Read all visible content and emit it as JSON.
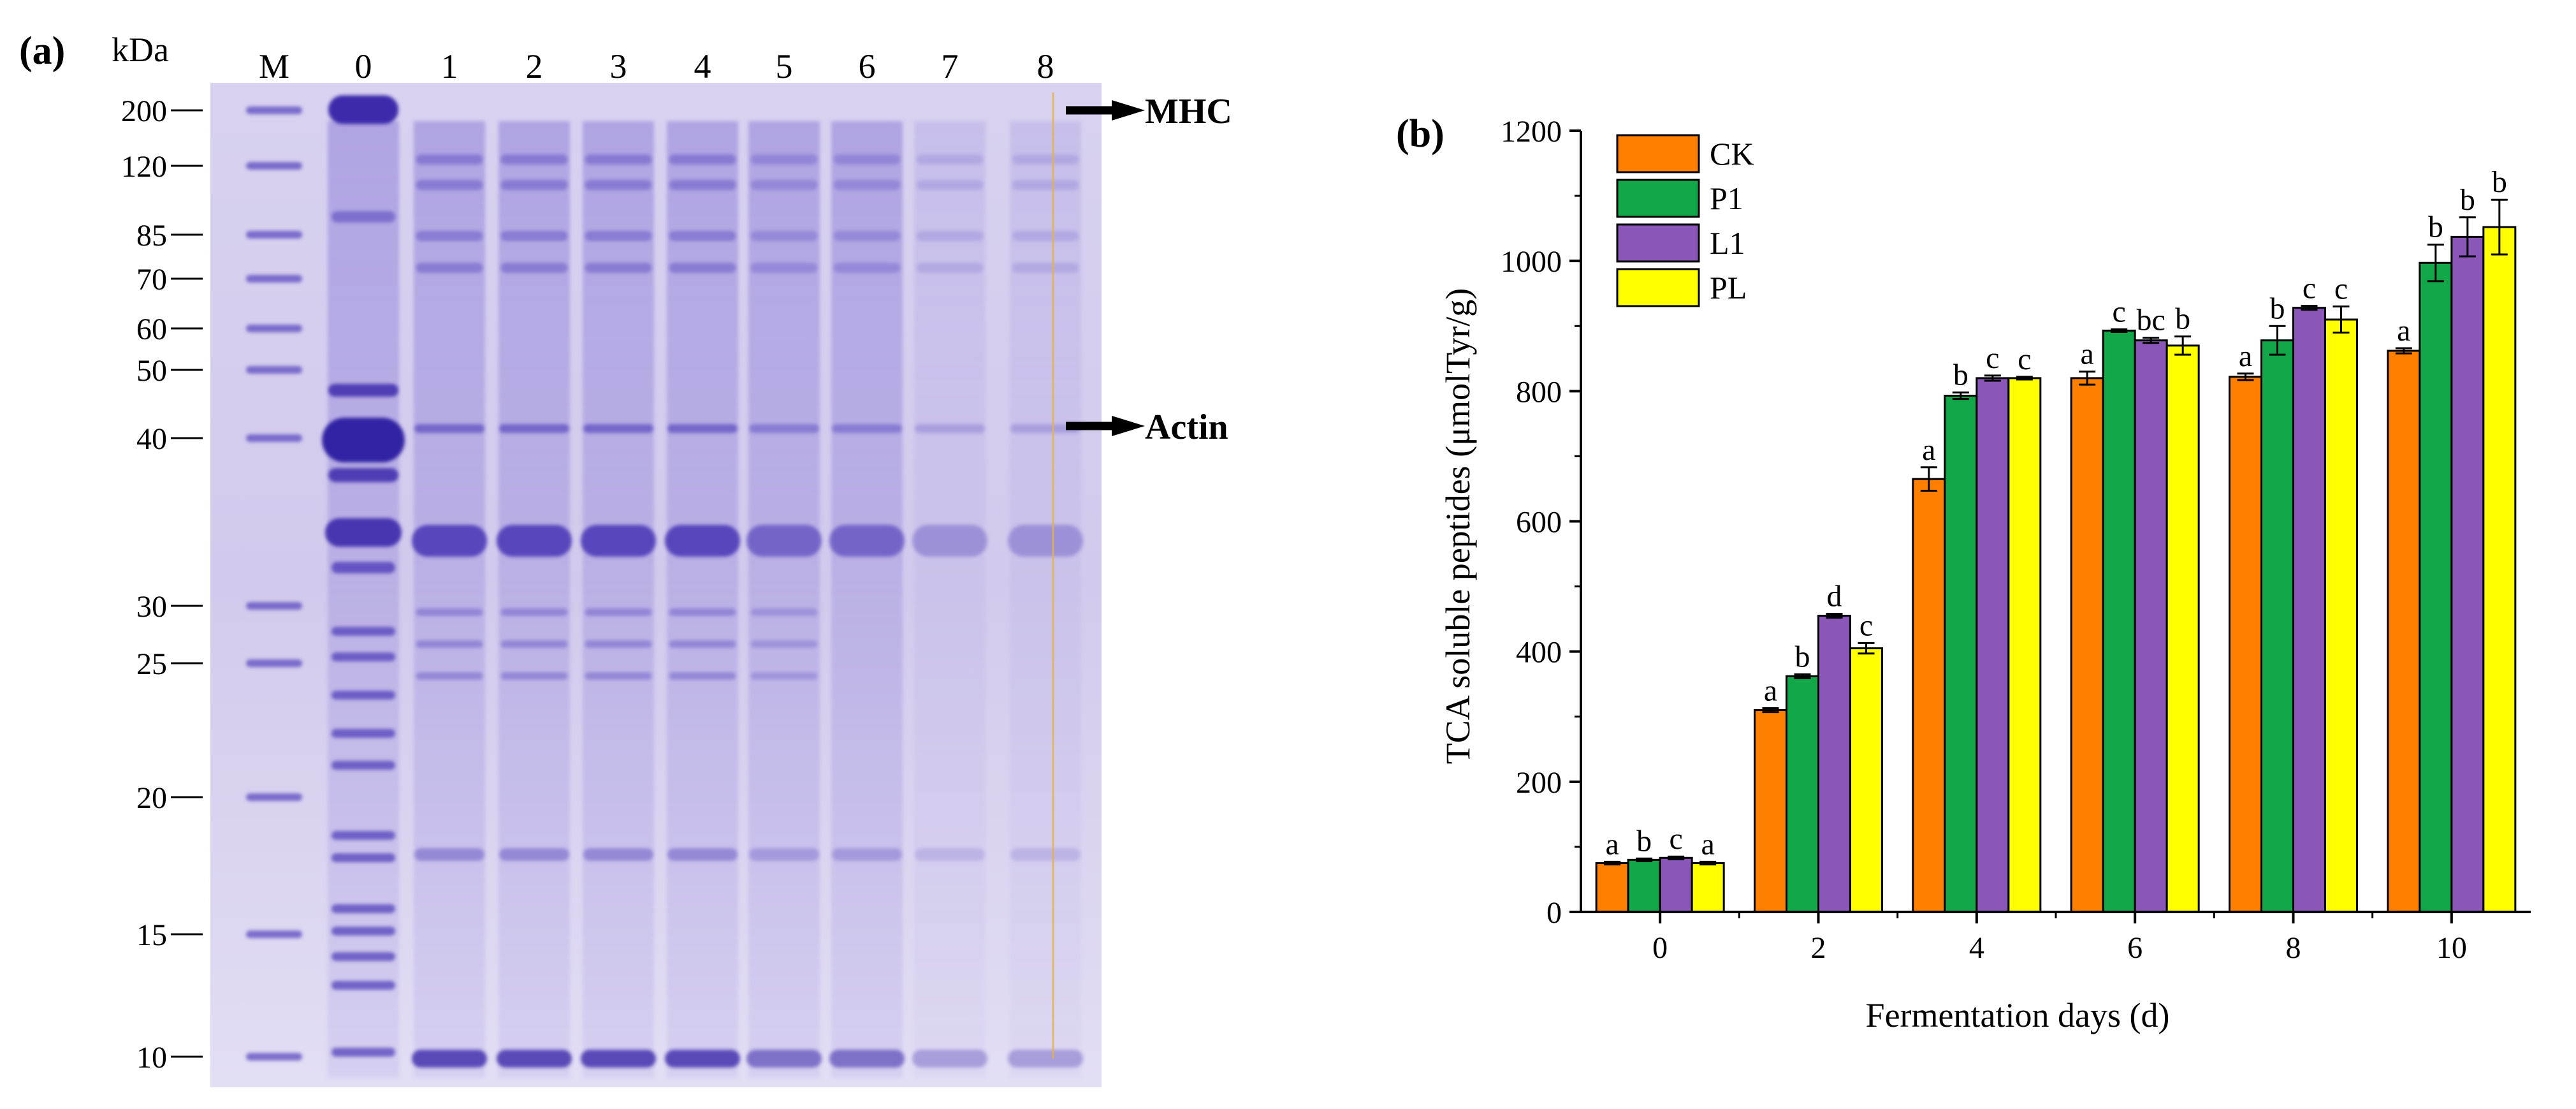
{
  "colors": {
    "gel_background": "#cfc8ea",
    "gel_band": "#5a48c0",
    "gel_band_dark": "#3522a8",
    "axis": "#000000",
    "arrow": "#000000",
    "orange_line": "#e5b24a"
  },
  "panel_a": {
    "label": "(a)",
    "unit_label": "kDa",
    "lanes": [
      "M",
      "0",
      "1",
      "2",
      "3",
      "4",
      "5",
      "6",
      "7",
      "8"
    ],
    "mw_markers": [
      "200",
      "120",
      "85",
      "70",
      "60",
      "50",
      "40",
      "30",
      "25",
      "20",
      "15",
      "10"
    ],
    "arrows": [
      {
        "label": "MHC"
      },
      {
        "label": "Actin"
      }
    ]
  },
  "panel_b": {
    "label": "(b)",
    "legend": [
      {
        "name": "CK",
        "color": "#ff7f00"
      },
      {
        "name": "P1",
        "color": "#12a84a"
      },
      {
        "name": "L1",
        "color": "#8a56b8"
      },
      {
        "name": "PL",
        "color": "#ffff00"
      }
    ]
  },
  "chart_data": {
    "type": "bar",
    "title": "",
    "xlabel": "Fermentation days (d)",
    "ylabel": "TCA soluble peptides (μmolTyr/g)",
    "categories": [
      "0",
      "2",
      "4",
      "6",
      "8",
      "10"
    ],
    "ylim": [
      0,
      1200
    ],
    "yticks": [
      "0",
      "200",
      "400",
      "600",
      "800",
      "1000",
      "1200"
    ],
    "series": [
      {
        "name": "CK",
        "color": "#ff7f00",
        "values": [
          75,
          310,
          665,
          820,
          822,
          862
        ],
        "errors": [
          2,
          3,
          18,
          10,
          5,
          4
        ],
        "letters": [
          "a",
          "a",
          "a",
          "a",
          "a",
          "a"
        ]
      },
      {
        "name": "P1",
        "color": "#12a84a",
        "values": [
          80,
          362,
          793,
          893,
          878,
          997
        ],
        "errors": [
          2,
          3,
          5,
          2,
          22,
          28
        ],
        "letters": [
          "b",
          "b",
          "b",
          "c",
          "b",
          "b"
        ]
      },
      {
        "name": "L1",
        "color": "#8a56b8",
        "values": [
          83,
          455,
          820,
          878,
          928,
          1037
        ],
        "errors": [
          2,
          3,
          4,
          4,
          3,
          30
        ],
        "letters": [
          "c",
          "d",
          "c",
          "bc",
          "c",
          "b"
        ]
      },
      {
        "name": "PL",
        "color": "#ffff00",
        "values": [
          75,
          405,
          820,
          870,
          910,
          1052
        ],
        "errors": [
          2,
          8,
          2,
          14,
          20,
          42
        ],
        "letters": [
          "a",
          "c",
          "c",
          "b",
          "c",
          "b"
        ]
      }
    ]
  }
}
